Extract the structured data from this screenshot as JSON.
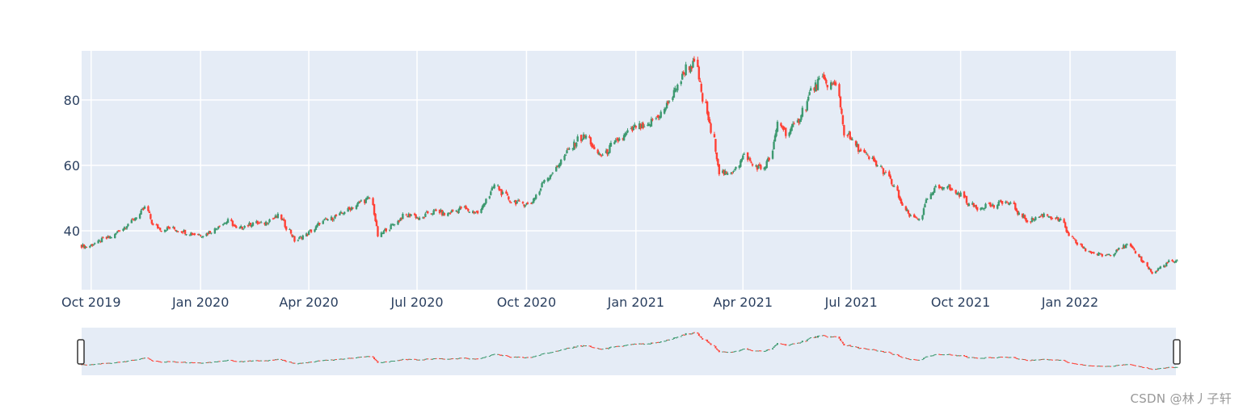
{
  "chart_data": {
    "type": "candlestick",
    "title": "",
    "xlabel": "",
    "ylabel": "",
    "xrange": [
      "2019-09-23",
      "2022-03-31"
    ],
    "ylim": [
      22,
      95
    ],
    "y_ticks": [
      40,
      60,
      80
    ],
    "x_ticks": [
      {
        "date": "2019-10-01",
        "label": "Oct 2019"
      },
      {
        "date": "2020-01-01",
        "label": "Jan 2020"
      },
      {
        "date": "2020-04-01",
        "label": "Apr 2020"
      },
      {
        "date": "2020-07-01",
        "label": "Jul 2020"
      },
      {
        "date": "2020-10-01",
        "label": "Oct 2020"
      },
      {
        "date": "2021-01-01",
        "label": "Jan 2021"
      },
      {
        "date": "2021-04-01",
        "label": "Apr 2021"
      },
      {
        "date": "2021-07-01",
        "label": "Jul 2021"
      },
      {
        "date": "2021-10-01",
        "label": "Oct 2021"
      },
      {
        "date": "2022-01-01",
        "label": "Jan 2022"
      }
    ],
    "grid": true,
    "rangeslider": true,
    "increasing_color": "#3d9970",
    "decreasing_color": "#ff4136",
    "weekly_close": [
      [
        "2019-09-23",
        35.5
      ],
      [
        "2019-09-30",
        35.2
      ],
      [
        "2019-10-07",
        36.2
      ],
      [
        "2019-10-14",
        37.5
      ],
      [
        "2019-10-21",
        38.2
      ],
      [
        "2019-10-28",
        40.5
      ],
      [
        "2019-11-04",
        42.2
      ],
      [
        "2019-11-11",
        44.5
      ],
      [
        "2019-11-18",
        47.0
      ],
      [
        "2019-11-25",
        41.5
      ],
      [
        "2019-12-02",
        40.5
      ],
      [
        "2019-12-09",
        40.8
      ],
      [
        "2019-12-16",
        40.2
      ],
      [
        "2019-12-23",
        39.5
      ],
      [
        "2019-12-30",
        39.0
      ],
      [
        "2020-01-06",
        38.8
      ],
      [
        "2020-01-13",
        40.0
      ],
      [
        "2020-01-20",
        42.0
      ],
      [
        "2020-01-27",
        43.0
      ],
      [
        "2020-02-03",
        40.5
      ],
      [
        "2020-02-10",
        41.5
      ],
      [
        "2020-02-17",
        42.5
      ],
      [
        "2020-02-24",
        42.0
      ],
      [
        "2020-03-02",
        43.5
      ],
      [
        "2020-03-09",
        44.5
      ],
      [
        "2020-03-16",
        41.0
      ],
      [
        "2020-03-23",
        37.0
      ],
      [
        "2020-03-30",
        38.5
      ],
      [
        "2020-04-06",
        40.0
      ],
      [
        "2020-04-13",
        42.5
      ],
      [
        "2020-04-20",
        43.5
      ],
      [
        "2020-04-27",
        44.5
      ],
      [
        "2020-05-04",
        46.0
      ],
      [
        "2020-05-11",
        47.5
      ],
      [
        "2020-05-18",
        49.0
      ],
      [
        "2020-05-25",
        50.0
      ],
      [
        "2020-06-01",
        38.5
      ],
      [
        "2020-06-08",
        40.5
      ],
      [
        "2020-06-15",
        42.5
      ],
      [
        "2020-06-22",
        44.5
      ],
      [
        "2020-06-29",
        45.0
      ],
      [
        "2020-07-06",
        43.5
      ],
      [
        "2020-07-13",
        45.5
      ],
      [
        "2020-07-20",
        46.0
      ],
      [
        "2020-07-27",
        45.0
      ],
      [
        "2020-08-03",
        46.0
      ],
      [
        "2020-08-10",
        47.0
      ],
      [
        "2020-08-17",
        46.0
      ],
      [
        "2020-08-24",
        45.5
      ],
      [
        "2020-08-31",
        50.0
      ],
      [
        "2020-09-07",
        54.0
      ],
      [
        "2020-09-14",
        51.0
      ],
      [
        "2020-09-21",
        49.0
      ],
      [
        "2020-09-28",
        48.5
      ],
      [
        "2020-10-05",
        48.0
      ],
      [
        "2020-10-12",
        51.0
      ],
      [
        "2020-10-19",
        56.0
      ],
      [
        "2020-10-26",
        58.0
      ],
      [
        "2020-11-02",
        62.0
      ],
      [
        "2020-11-09",
        65.0
      ],
      [
        "2020-11-16",
        68.0
      ],
      [
        "2020-11-23",
        69.0
      ],
      [
        "2020-11-30",
        64.0
      ],
      [
        "2020-12-07",
        63.0
      ],
      [
        "2020-12-14",
        66.0
      ],
      [
        "2020-12-21",
        68.0
      ],
      [
        "2020-12-28",
        70.0
      ],
      [
        "2021-01-04",
        72.0
      ],
      [
        "2021-01-11",
        71.0
      ],
      [
        "2021-01-18",
        74.0
      ],
      [
        "2021-01-25",
        76.0
      ],
      [
        "2021-02-01",
        80.0
      ],
      [
        "2021-02-08",
        85.0
      ],
      [
        "2021-02-15",
        90.0
      ],
      [
        "2021-02-22",
        91.0
      ],
      [
        "2021-03-01",
        80.0
      ],
      [
        "2021-03-08",
        70.0
      ],
      [
        "2021-03-15",
        58.0
      ],
      [
        "2021-03-22",
        57.0
      ],
      [
        "2021-03-29",
        60.0
      ],
      [
        "2021-04-05",
        63.0
      ],
      [
        "2021-04-12",
        60.0
      ],
      [
        "2021-04-19",
        59.0
      ],
      [
        "2021-04-26",
        62.0
      ],
      [
        "2021-05-03",
        73.0
      ],
      [
        "2021-05-10",
        70.0
      ],
      [
        "2021-05-17",
        72.0
      ],
      [
        "2021-05-24",
        77.0
      ],
      [
        "2021-05-31",
        83.0
      ],
      [
        "2021-06-07",
        86.0
      ],
      [
        "2021-06-14",
        85.0
      ],
      [
        "2021-06-21",
        84.0
      ],
      [
        "2021-06-28",
        70.0
      ],
      [
        "2021-07-05",
        67.0
      ],
      [
        "2021-07-12",
        64.0
      ],
      [
        "2021-07-19",
        62.0
      ],
      [
        "2021-07-26",
        60.0
      ],
      [
        "2021-08-02",
        57.0
      ],
      [
        "2021-08-09",
        53.0
      ],
      [
        "2021-08-16",
        47.0
      ],
      [
        "2021-08-23",
        44.0
      ],
      [
        "2021-08-30",
        44.0
      ],
      [
        "2021-09-06",
        50.0
      ],
      [
        "2021-09-13",
        53.0
      ],
      [
        "2021-09-20",
        54.0
      ],
      [
        "2021-09-27",
        52.0
      ],
      [
        "2021-10-04",
        51.0
      ],
      [
        "2021-10-11",
        48.0
      ],
      [
        "2021-10-18",
        47.0
      ],
      [
        "2021-10-25",
        48.0
      ],
      [
        "2021-11-01",
        47.5
      ],
      [
        "2021-11-08",
        49.0
      ],
      [
        "2021-11-15",
        48.0
      ],
      [
        "2021-11-22",
        45.0
      ],
      [
        "2021-11-29",
        43.0
      ],
      [
        "2021-12-06",
        44.0
      ],
      [
        "2021-12-13",
        45.0
      ],
      [
        "2021-12-20",
        44.0
      ],
      [
        "2021-12-27",
        43.0
      ],
      [
        "2022-01-03",
        38.0
      ],
      [
        "2022-01-10",
        36.0
      ],
      [
        "2022-01-17",
        34.0
      ],
      [
        "2022-01-24",
        33.0
      ],
      [
        "2022-01-31",
        32.5
      ],
      [
        "2022-02-07",
        33.0
      ],
      [
        "2022-02-14",
        35.0
      ],
      [
        "2022-02-21",
        35.5
      ],
      [
        "2022-02-28",
        33.0
      ],
      [
        "2022-03-07",
        30.0
      ],
      [
        "2022-03-14",
        27.0
      ],
      [
        "2022-03-21",
        29.0
      ],
      [
        "2022-03-28",
        30.5
      ]
    ]
  },
  "watermark": "CSDN @林丿子轩"
}
